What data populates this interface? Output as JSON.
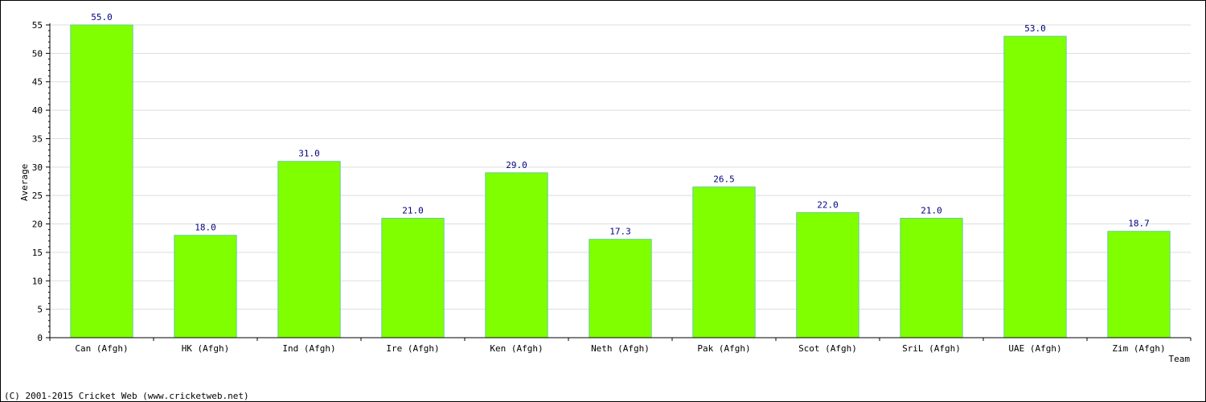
{
  "chart_data": {
    "type": "bar",
    "title": "",
    "xlabel": "Team",
    "ylabel": "Average",
    "categories": [
      "Can (Afgh)",
      "HK (Afgh)",
      "Ind (Afgh)",
      "Ire (Afgh)",
      "Ken (Afgh)",
      "Neth (Afgh)",
      "Pak (Afgh)",
      "Scot (Afgh)",
      "SriL (Afgh)",
      "UAE (Afgh)",
      "Zim (Afgh)"
    ],
    "values": [
      55.0,
      18.0,
      31.0,
      21.0,
      29.0,
      17.3,
      26.5,
      22.0,
      21.0,
      53.0,
      18.7
    ],
    "value_labels": [
      "55.0",
      "18.0",
      "31.0",
      "21.0",
      "29.0",
      "17.3",
      "26.5",
      "22.0",
      "21.0",
      "53.0",
      "18.7"
    ],
    "ylim": [
      0,
      55
    ],
    "yticks": [
      0,
      5,
      10,
      15,
      20,
      25,
      30,
      35,
      40,
      45,
      50,
      55
    ],
    "grid": true,
    "bar_color": "#80ff00",
    "bar_edge_color": "#66cc99",
    "value_label_color": "#000080"
  },
  "footer": {
    "copyright": "(C) 2001-2015 Cricket Web (www.cricketweb.net)"
  }
}
